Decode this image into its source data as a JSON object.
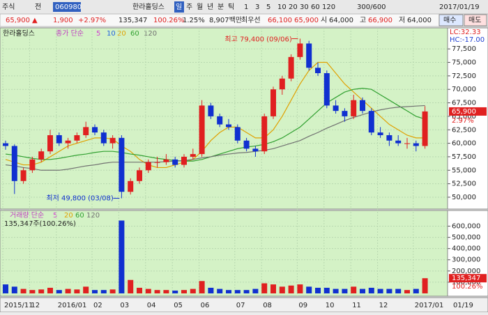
{
  "toolbar": {
    "market": "주식",
    "all": "전",
    "code": "060980",
    "name": "한라홀딩스",
    "periods": [
      "일",
      "주",
      "월",
      "년",
      "분",
      "틱"
    ],
    "minutes": [
      "1",
      "3",
      "5",
      "10",
      "20",
      "30",
      "60",
      "120"
    ],
    "count": "300/600",
    "date": "2017/01/19"
  },
  "info": {
    "price": "65,900",
    "arrow": "▲",
    "change": "1,900",
    "rate": "+2.97%",
    "volume": "135,347",
    "volume_rate": "100.26%",
    "turnover": "1.25%",
    "amount": "8,907백만",
    "best": "최우선",
    "ask": "66,100",
    "bid": "65,900",
    "open_label": "시",
    "open": "64,000",
    "high_label": "고",
    "high": "66,900",
    "low_label": "저",
    "low": "64,000",
    "buy": "매수",
    "sell": "매도"
  },
  "chart_data": {
    "type": "candlestick",
    "name": "한라홀딩스",
    "ma_label": "종가 단순",
    "legend": [
      {
        "label": "5",
        "color": "#d040d0"
      },
      {
        "label": "10",
        "color": "#2060e0"
      },
      {
        "label": "20",
        "color": "#e0a000"
      },
      {
        "label": "60",
        "color": "#30a030"
      },
      {
        "label": "120",
        "color": "#707070"
      }
    ],
    "lc": "LC:32.33",
    "hc": "HC:-17.00",
    "ylim": [
      47800,
      81400
    ],
    "yticks": [
      {
        "value": 50000,
        "label": "50,000"
      },
      {
        "value": 52500,
        "label": "52,500"
      },
      {
        "value": 55000,
        "label": "55,000"
      },
      {
        "value": 57500,
        "label": "57,500"
      },
      {
        "value": 60000,
        "label": "60,000"
      },
      {
        "value": 62500,
        "label": "62,500"
      },
      {
        "value": 65000,
        "label": "65,000"
      },
      {
        "value": 67500,
        "label": "67,500"
      },
      {
        "value": 70000,
        "label": "70,000"
      },
      {
        "value": 72500,
        "label": "72,500"
      },
      {
        "value": 75000,
        "label": "75,000"
      },
      {
        "value": 77500,
        "label": "77,500"
      }
    ],
    "up_color": "#e02020",
    "down_color": "#1030d0",
    "candles": [
      [
        60000,
        60500,
        58800,
        59500
      ],
      [
        59500,
        59800,
        50600,
        53000
      ],
      [
        53000,
        55500,
        52500,
        55000
      ],
      [
        55000,
        57500,
        54500,
        57000
      ],
      [
        57000,
        59000,
        56500,
        58500
      ],
      [
        58500,
        62500,
        58000,
        61500
      ],
      [
        61500,
        62000,
        59500,
        60000
      ],
      [
        60000,
        61000,
        59000,
        60500
      ],
      [
        60500,
        62000,
        60000,
        61500
      ],
      [
        61500,
        64000,
        61000,
        63000
      ],
      [
        63000,
        63500,
        61500,
        62000
      ],
      [
        62000,
        62500,
        59500,
        60000
      ],
      [
        60000,
        61500,
        59000,
        61000
      ],
      [
        61000,
        61500,
        49800,
        51000
      ],
      [
        51000,
        53500,
        50500,
        53000
      ],
      [
        53000,
        55500,
        52500,
        55000
      ],
      [
        55000,
        57000,
        54500,
        56500
      ],
      [
        56500,
        57500,
        55500,
        56500
      ],
      [
        56500,
        58000,
        56000,
        57000
      ],
      [
        57000,
        57500,
        55500,
        56000
      ],
      [
        56000,
        58000,
        55500,
        57500
      ],
      [
        57500,
        59000,
        57000,
        58000
      ],
      [
        58000,
        68000,
        57500,
        67000
      ],
      [
        67000,
        67500,
        64500,
        65000
      ],
      [
        65000,
        65500,
        63000,
        63500
      ],
      [
        63500,
        64500,
        62500,
        63000
      ],
      [
        63000,
        63500,
        60000,
        60500
      ],
      [
        60500,
        61000,
        58500,
        59000
      ],
      [
        59000,
        59500,
        57500,
        58500
      ],
      [
        58500,
        65500,
        58000,
        65000
      ],
      [
        65000,
        70500,
        64500,
        70000
      ],
      [
        70000,
        72500,
        69000,
        72000
      ],
      [
        72000,
        76500,
        71500,
        76000
      ],
      [
        76000,
        79400,
        75500,
        78500
      ],
      [
        78500,
        79000,
        73500,
        74000
      ],
      [
        74000,
        75000,
        72500,
        73000
      ],
      [
        73000,
        73500,
        66500,
        67000
      ],
      [
        67000,
        68000,
        65500,
        66000
      ],
      [
        66000,
        66500,
        64000,
        65000
      ],
      [
        65000,
        69000,
        64500,
        68000
      ],
      [
        68000,
        68500,
        65500,
        66000
      ],
      [
        66000,
        66500,
        61500,
        62000
      ],
      [
        62000,
        63000,
        61000,
        61500
      ],
      [
        61500,
        62000,
        59500,
        60500
      ],
      [
        60500,
        61500,
        59500,
        60000
      ],
      [
        60000,
        61000,
        59000,
        60000
      ],
      [
        60000,
        60500,
        58500,
        59500
      ],
      [
        59500,
        66900,
        59000,
        65900
      ]
    ],
    "ma": [
      {
        "legend": 2,
        "values": [
          57000,
          56500,
          56000,
          56000,
          56500,
          57500,
          58500,
          59500,
          60000,
          60500,
          61000,
          61000,
          60800,
          59500,
          58500,
          57000,
          56000,
          55500,
          55500,
          56000,
          56500,
          57000,
          58500,
          60500,
          62000,
          63000,
          63000,
          62000,
          61000,
          61000,
          62500,
          65000,
          68000,
          71000,
          73500,
          75000,
          75000,
          73000,
          71000,
          69500,
          68000,
          66500,
          65000,
          63500,
          62500,
          61500,
          61000,
          61000
        ]
      },
      {
        "legend": 3,
        "values": [
          58000,
          57800,
          57500,
          57200,
          57000,
          57000,
          57200,
          57500,
          57800,
          58000,
          58300,
          58500,
          58500,
          58300,
          58000,
          57800,
          57500,
          57200,
          57000,
          56800,
          56700,
          56700,
          57000,
          57500,
          58000,
          58500,
          59000,
          59300,
          59500,
          59800,
          60300,
          61000,
          62000,
          63000,
          64500,
          66000,
          67500,
          68500,
          69500,
          70000,
          70200,
          70000,
          69000,
          68000,
          67000,
          66000,
          65000,
          64500
        ]
      },
      {
        "legend": 4,
        "values": [
          56000,
          55800,
          55500,
          55300,
          55000,
          55000,
          55000,
          55200,
          55500,
          55800,
          56000,
          56300,
          56500,
          56500,
          56500,
          56500,
          56500,
          56500,
          56600,
          56700,
          56800,
          57000,
          57300,
          57500,
          57800,
          58000,
          58200,
          58300,
          58500,
          58700,
          59000,
          59500,
          60000,
          60500,
          61300,
          62000,
          62800,
          63500,
          64200,
          64800,
          65300,
          65800,
          66200,
          66500,
          66700,
          66800,
          66900,
          67000
        ]
      }
    ],
    "high_note": {
      "text": "최고 79,400 (09/06)",
      "value": 79400,
      "index": 33
    },
    "low_note": {
      "text": "최저 49,800 (03/08)",
      "value": 49800,
      "index": 13
    },
    "last": {
      "value": 65900,
      "label": "65,900",
      "rate": "2.97%"
    },
    "volume_title": "거래량 단순",
    "volume_legend": [
      {
        "label": "5",
        "color": "#d040d0"
      },
      {
        "label": "20",
        "color": "#e0a000"
      },
      {
        "label": "60",
        "color": "#30a030"
      },
      {
        "label": "120",
        "color": "#707070"
      }
    ],
    "volume_note": "135,347주(100.26%)",
    "vlim": [
      -25000,
      740000
    ],
    "vticks": [
      {
        "value": 100000,
        "label": "100,000"
      },
      {
        "value": 200000,
        "label": "200,000"
      },
      {
        "value": 300000,
        "label": "300,000"
      },
      {
        "value": 400000,
        "label": "400,000"
      },
      {
        "value": 500000,
        "label": "500,000"
      },
      {
        "value": 600000,
        "label": "600,000"
      }
    ],
    "volumes": [
      80000,
      60000,
      40000,
      30000,
      35000,
      50000,
      30000,
      40000,
      35000,
      60000,
      30000,
      30000,
      35000,
      650000,
      120000,
      50000,
      40000,
      30000,
      30000,
      25000,
      30000,
      40000,
      110000,
      50000,
      40000,
      30000,
      30000,
      30000,
      40000,
      90000,
      80000,
      60000,
      70000,
      80000,
      60000,
      50000,
      50000,
      40000,
      40000,
      60000,
      40000,
      50000,
      40000,
      40000,
      40000,
      30000,
      40000,
      135347
    ],
    "last_volume": {
      "value": 135347,
      "label": "135,347",
      "rate": "100.26%"
    },
    "x_labels": [
      {
        "index": 0,
        "label": "2015/11"
      },
      {
        "index": 3,
        "label": "12"
      },
      {
        "index": 6,
        "label": "2016/01"
      },
      {
        "index": 10,
        "label": "02"
      },
      {
        "index": 13,
        "label": "03"
      },
      {
        "index": 16,
        "label": "04"
      },
      {
        "index": 19,
        "label": "05"
      },
      {
        "index": 22,
        "label": "06"
      },
      {
        "index": 26,
        "label": "07"
      },
      {
        "index": 29,
        "label": "08"
      },
      {
        "index": 33,
        "label": "09"
      },
      {
        "index": 36,
        "label": "10"
      },
      {
        "index": 39,
        "label": "11"
      },
      {
        "index": 42,
        "label": "12"
      },
      {
        "index": 46,
        "label": "2017/01"
      }
    ],
    "cursor_date": "01/19"
  }
}
